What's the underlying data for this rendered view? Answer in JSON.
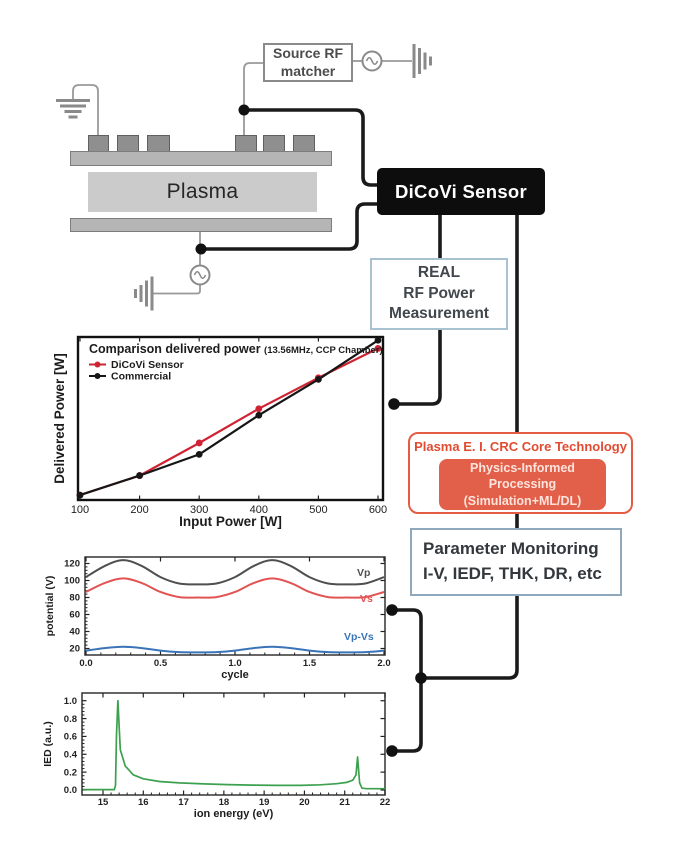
{
  "diagram": {
    "plasma_label": "Plasma",
    "source_rf_matcher": {
      "line1": "Source RF",
      "line2": "matcher"
    },
    "dicovi_sensor_label": "DiCoVi Sensor",
    "real_rf_box": {
      "line1": "REAL",
      "line2": "RF Power",
      "line3": "Measurement"
    },
    "core_tech_box": {
      "title": "Plasma E. I. CRC Core Technology",
      "inner_line1": "Physics-Informed",
      "inner_line2": "Processing",
      "inner_line3": "(Simulation+ML/DL)"
    },
    "param_box": {
      "line1": "Parameter Monitoring",
      "line2": "I-V, IEDF, THK, DR, etc"
    }
  },
  "colors": {
    "wire_black": "#1a1a1a",
    "wire_gray": "#999999",
    "accent_red": "#e2604a",
    "box_border_blue": "#8fa8bc",
    "dicovi_red": "#cf2333",
    "commercial_black": "#161616",
    "vp_gray": "#4f4f4f",
    "vs_red": "#e25353",
    "vpvs_blue": "#3a74b8",
    "ied_green": "#3da04e"
  },
  "chart_data": [
    {
      "id": "comparison",
      "type": "line",
      "title": "Comparison delivered power",
      "title_suffix": "(13.56MHz, CCP Chamber)",
      "xlabel": "Input Power [W]",
      "ylabel": "Delivered Power [W]",
      "x": [
        100,
        200,
        300,
        400,
        500,
        600
      ],
      "xticks": [
        100,
        200,
        300,
        400,
        500,
        600
      ],
      "xlim": [
        95,
        610
      ],
      "ylim": [
        0,
        1
      ],
      "y_axis_unlabeled": true,
      "note": "y values in arbitrary units estimated from plot (no y tick labels shown)",
      "grid": false,
      "legend_position": "top-left",
      "series": [
        {
          "name": "DiCoVi Sensor",
          "color": "#cf2333",
          "values": [
            0.03,
            0.15,
            0.35,
            0.56,
            0.75,
            0.93
          ]
        },
        {
          "name": "Commercial",
          "color": "#161616",
          "values": [
            0.03,
            0.15,
            0.28,
            0.52,
            0.74,
            0.98
          ]
        }
      ]
    },
    {
      "id": "potential",
      "type": "line",
      "title": "",
      "xlabel": "cycle",
      "ylabel": "potential (V)",
      "x": [
        0,
        0.125,
        0.25,
        0.375,
        0.5,
        0.625,
        0.75,
        0.875,
        1,
        1.125,
        1.25,
        1.375,
        1.5,
        1.625,
        1.75,
        1.875,
        2
      ],
      "xticks": [
        "0.0",
        "0.5",
        "1.0",
        "1.5",
        "2.0"
      ],
      "xtick_values": [
        0,
        0.5,
        1,
        1.5,
        2
      ],
      "yticks": [
        20,
        40,
        60,
        80,
        100,
        120
      ],
      "xlim": [
        0,
        2
      ],
      "ylim": [
        12,
        127
      ],
      "grid": false,
      "series": [
        {
          "name": "Vp",
          "color": "#4f4f4f",
          "values": [
            104,
            117,
            124,
            117,
            104,
            96.5,
            95.5,
            96.5,
            104,
            117,
            124,
            117,
            104,
            96.5,
            95.5,
            96.5,
            104
          ]
        },
        {
          "name": "Vs",
          "color": "#e25353",
          "values": [
            86.5,
            97,
            102.5,
            97,
            86.5,
            80.5,
            80,
            80.5,
            86.5,
            97,
            102.5,
            97,
            86.5,
            80.5,
            80,
            80.5,
            86.5
          ]
        },
        {
          "name": "Vp-Vs",
          "color": "#3a74b8",
          "values": [
            17.5,
            20.5,
            22,
            20.5,
            17.5,
            15.7,
            15.5,
            15.7,
            17.5,
            20.5,
            22,
            20.5,
            17.5,
            15.7,
            15.5,
            15.7,
            17.5
          ]
        }
      ]
    },
    {
      "id": "ied",
      "type": "line",
      "title": "",
      "xlabel": "ion energy (eV)",
      "ylabel": "IED (a.u.)",
      "x": [
        14.5,
        15.28,
        15.31,
        15.335,
        15.37,
        15.43,
        15.55,
        15.75,
        16.0,
        16.4,
        16.9,
        17.5,
        18.1,
        18.7,
        19.3,
        19.9,
        20.4,
        20.8,
        21.05,
        21.2,
        21.28,
        21.32,
        21.37,
        21.43,
        21.55,
        22
      ],
      "xticks": [
        15,
        16,
        17,
        18,
        19,
        20,
        21,
        22
      ],
      "yticks": [
        "0.0",
        "0.2",
        "0.4",
        "0.6",
        "0.8",
        "1.0"
      ],
      "ytick_values": [
        0,
        0.2,
        0.4,
        0.6,
        0.8,
        1.0
      ],
      "xlim": [
        14.5,
        22
      ],
      "ylim": [
        0,
        1.08
      ],
      "grid": false,
      "series": [
        {
          "name": "IED",
          "color": "#3da04e",
          "values": [
            0.005,
            0.005,
            0.05,
            0.62,
            1.0,
            0.45,
            0.27,
            0.17,
            0.125,
            0.095,
            0.08,
            0.068,
            0.06,
            0.055,
            0.052,
            0.052,
            0.058,
            0.07,
            0.085,
            0.11,
            0.17,
            0.37,
            0.08,
            0.02,
            0.015,
            0.015
          ]
        }
      ]
    }
  ]
}
